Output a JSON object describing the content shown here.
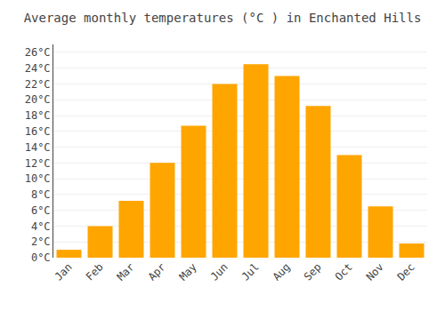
{
  "chart_data": {
    "type": "bar",
    "title": "Average monthly temperatures (°C ) in Enchanted Hills",
    "categories": [
      "Jan",
      "Feb",
      "Mar",
      "Apr",
      "May",
      "Jun",
      "Jul",
      "Aug",
      "Sep",
      "Oct",
      "Nov",
      "Dec"
    ],
    "values": [
      1.0,
      4.0,
      7.2,
      12.0,
      16.7,
      22.0,
      24.5,
      23.0,
      19.2,
      13.0,
      6.5,
      1.8
    ],
    "color": "#FFA500",
    "ylim": [
      0,
      27
    ],
    "yticks": [
      {
        "value": 0,
        "label": "0°C"
      },
      {
        "value": 2,
        "label": "2°C"
      },
      {
        "value": 4,
        "label": "4°C"
      },
      {
        "value": 6,
        "label": "6°C"
      },
      {
        "value": 8,
        "label": "8°C"
      },
      {
        "value": 10,
        "label": "10°C"
      },
      {
        "value": 12,
        "label": "12°C"
      },
      {
        "value": 14,
        "label": "14°C"
      },
      {
        "value": 16,
        "label": "16°C"
      },
      {
        "value": 18,
        "label": "18°C"
      },
      {
        "value": 20,
        "label": "20°C"
      },
      {
        "value": 22,
        "label": "22°C"
      },
      {
        "value": 24,
        "label": "24°C"
      },
      {
        "value": 26,
        "label": "26°C"
      }
    ],
    "grid": true
  }
}
